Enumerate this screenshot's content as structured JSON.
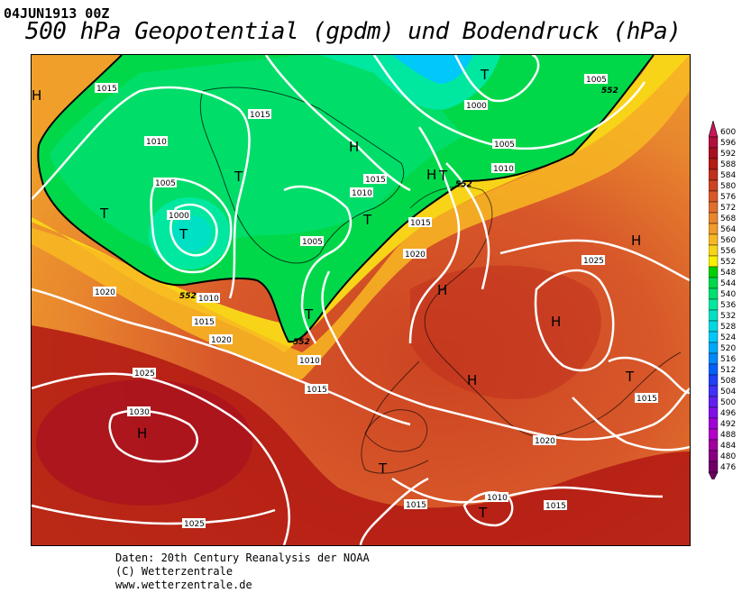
{
  "header": {
    "date": "04JUN1913 00Z",
    "title": "500 hPa Geopotential (gpdm) und Bodendruck (hPa)"
  },
  "footer": {
    "line1": "Daten: 20th Century Reanalysis der NOAA",
    "line2": "(C) Wetterzentrale",
    "line3": "www.wetterzentrale.de"
  },
  "legend": {
    "levels": [
      "600",
      "596",
      "592",
      "588",
      "584",
      "580",
      "576",
      "572",
      "568",
      "564",
      "560",
      "556",
      "552",
      "548",
      "544",
      "540",
      "536",
      "532",
      "528",
      "524",
      "520",
      "516",
      "512",
      "508",
      "504",
      "500",
      "496",
      "492",
      "488",
      "484",
      "480",
      "476"
    ],
    "colors": [
      "#c8185a",
      "#b0103c",
      "#a81020",
      "#b41c14",
      "#c0301e",
      "#cc4422",
      "#d8582a",
      "#e06e2c",
      "#e8862e",
      "#f09c2a",
      "#f8b822",
      "#f8d418",
      "#f8f000",
      "#00d000",
      "#00d84a",
      "#00e070",
      "#00e8a0",
      "#00e0c4",
      "#00d8e0",
      "#00c8f8",
      "#00a8f8",
      "#0088f8",
      "#0060f8",
      "#2040f8",
      "#4030f8",
      "#6020f0",
      "#8010e8",
      "#a000d8",
      "#b400c8",
      "#a0009c",
      "#880080",
      "#700066"
    ]
  },
  "map_labels": {
    "highs": [
      "H",
      "H",
      "H",
      "H",
      "H",
      "H",
      "H",
      "H"
    ],
    "lows": [
      "T",
      "T",
      "T",
      "T",
      "T",
      "T",
      "T",
      "T",
      "T",
      "T"
    ],
    "isobars": [
      "1015",
      "1000",
      "1015",
      "1010",
      "1005",
      "1010",
      "1015",
      "1005",
      "1010",
      "1000",
      "1015",
      "1010",
      "1005",
      "1020",
      "1025",
      "1020",
      "1015",
      "1020",
      "1025",
      "1030",
      "1025",
      "1015",
      "1010",
      "1015",
      "1020",
      "1015",
      "1015",
      "1010",
      "1005"
    ],
    "heights": [
      "552",
      "552",
      "552",
      "552"
    ]
  }
}
